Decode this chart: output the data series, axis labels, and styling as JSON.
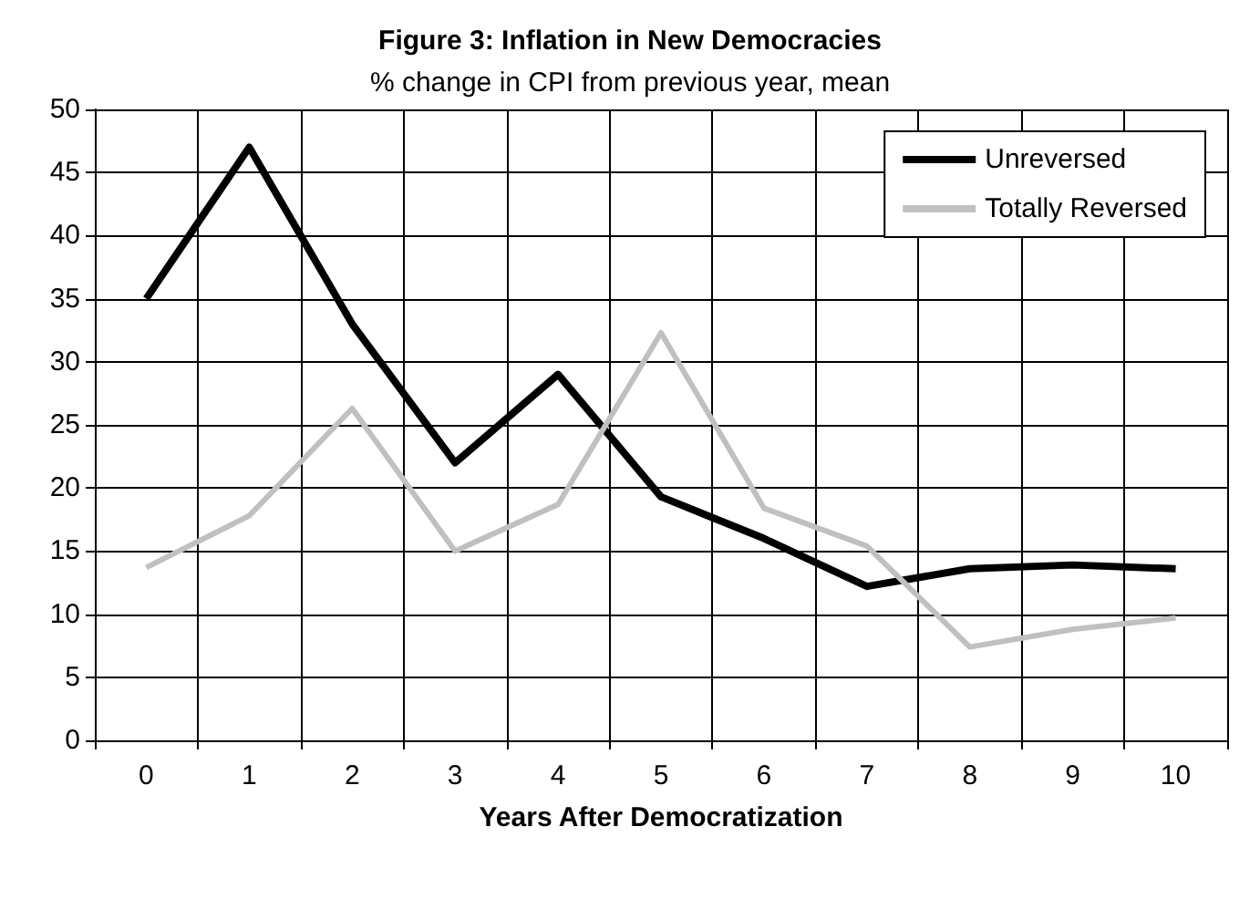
{
  "chart_data": {
    "type": "line",
    "title": "Figure 3: Inflation in New Democracies",
    "subtitle": "% change in CPI from previous year, mean",
    "xlabel": "Years After Democratization",
    "categories": [
      "0",
      "1",
      "2",
      "3",
      "4",
      "5",
      "6",
      "7",
      "8",
      "9",
      "10"
    ],
    "series": [
      {
        "name": "Unreversed",
        "color": "#000000",
        "values": [
          35,
          47,
          33,
          22,
          29,
          19.3,
          16,
          12.2,
          13.6,
          13.9,
          13.6
        ]
      },
      {
        "name": "Totally Reversed",
        "color": "#c0c0c0",
        "values": [
          13.7,
          17.8,
          26.3,
          15,
          18.7,
          32.3,
          18.4,
          15.4,
          7.4,
          8.8,
          9.7
        ]
      }
    ],
    "ylim": [
      0,
      50
    ],
    "yticks": [
      0,
      5,
      10,
      15,
      20,
      25,
      30,
      35,
      40,
      45,
      50
    ],
    "grid": true,
    "legend": "top right",
    "marker": "none",
    "line_style": "solid"
  }
}
